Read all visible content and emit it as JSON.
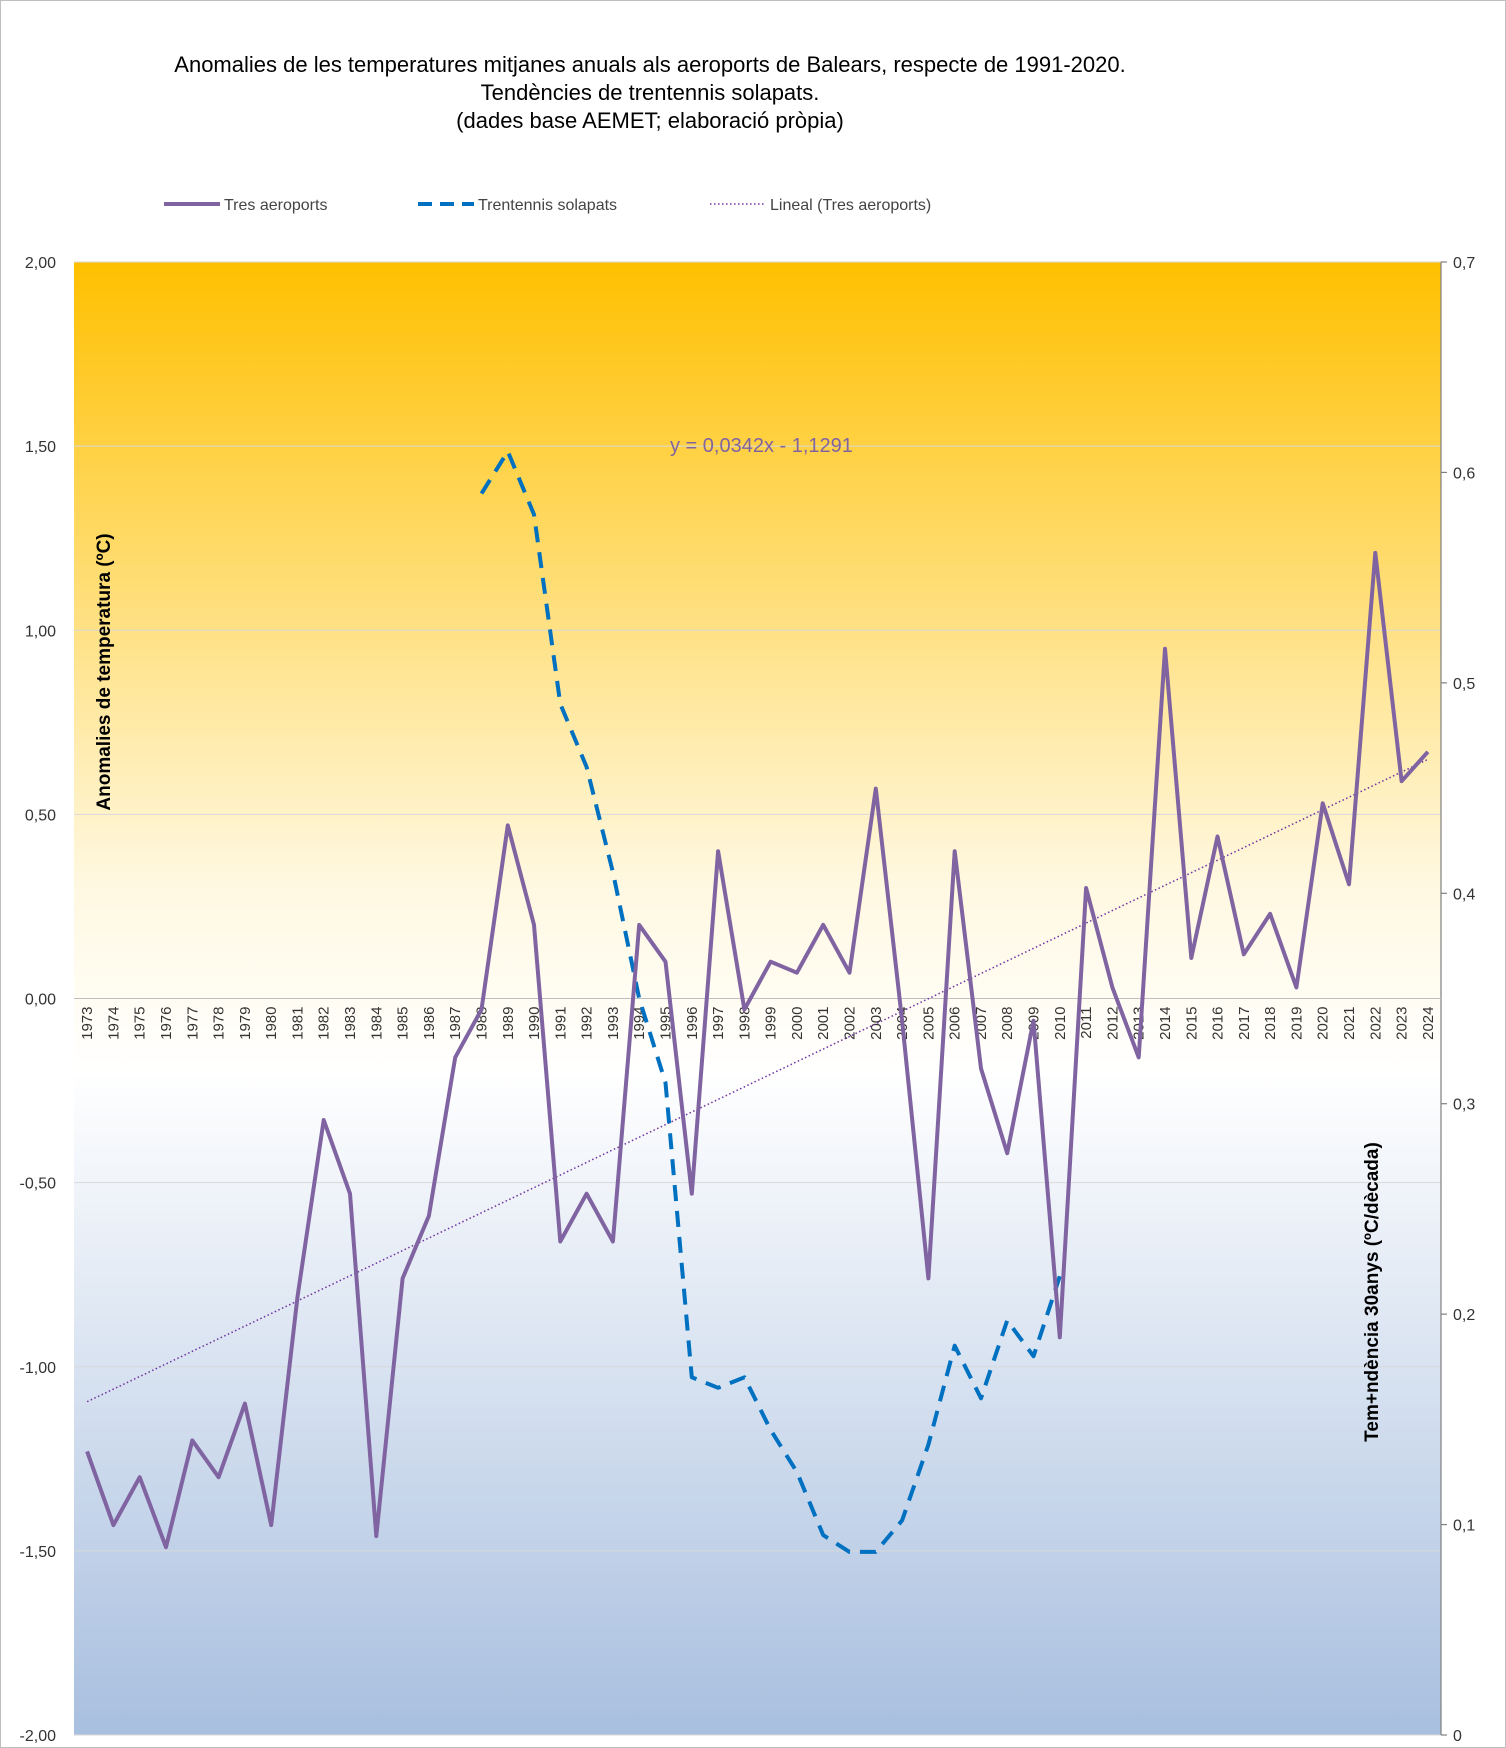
{
  "chart_data": {
    "type": "line",
    "title_lines": [
      "Anomalies de les temperatures mitjanes anuals als aeroports de Balears, respecte de 1991-2020.",
      "Tendències de trentennis solapats.",
      "(dades base AEMET; elaboració pròpia)"
    ],
    "ylabel": "Anomalies de temperatura (ºC)",
    "y2label": "Tem+ndència 30anys (ºC/dècada)",
    "ylim": [
      -2,
      2
    ],
    "y2lim": [
      0,
      0.7
    ],
    "yticks": [
      "2,00",
      "1,50",
      "1,00",
      "0,50",
      "0,00",
      "-0,50",
      "-1,00",
      "-1,50",
      "-2,00"
    ],
    "y2ticks": [
      "0,7",
      "0,6",
      "0,5",
      "0,4",
      "0,3",
      "0,2",
      "0,1",
      "0"
    ],
    "categories": [
      "1973",
      "1974",
      "1975",
      "1976",
      "1977",
      "1978",
      "1979",
      "1980",
      "1981",
      "1982",
      "1983",
      "1984",
      "1985",
      "1986",
      "1987",
      "1988",
      "1989",
      "1990",
      "1991",
      "1992",
      "1993",
      "1994",
      "1995",
      "1996",
      "1997",
      "1998",
      "1999",
      "2000",
      "2001",
      "2002",
      "2003",
      "2004",
      "2005",
      "2006",
      "2007",
      "2008",
      "2009",
      "2010",
      "2011",
      "2012",
      "2013",
      "2014",
      "2015",
      "2016",
      "2017",
      "2018",
      "2019",
      "2020",
      "2021",
      "2022",
      "2023",
      "2024"
    ],
    "legend_position": "top",
    "background": "vertical gradient: orange at top, white at zero, light blue at bottom",
    "colors": {
      "main": "#8064a2",
      "trend30": "#0070c0",
      "linear": "#7030a0",
      "bg_top": "#ffc000",
      "bg_mid": "#ffffff",
      "bg_bottom": "#a8bfdf"
    },
    "series": [
      {
        "name": "Tres aeroports",
        "axis": "left",
        "style": "solid",
        "values": [
          -1.23,
          -1.43,
          -1.3,
          -1.49,
          -1.2,
          -1.3,
          -1.1,
          -1.43,
          -0.81,
          -0.33,
          -0.53,
          -1.46,
          -0.76,
          -0.59,
          -0.16,
          -0.03,
          0.47,
          0.2,
          -0.66,
          -0.53,
          -0.66,
          0.2,
          0.1,
          -0.53,
          0.4,
          -0.03,
          0.1,
          0.07,
          0.2,
          0.07,
          0.57,
          -0.06,
          -0.76,
          0.4,
          -0.19,
          -0.42,
          -0.06,
          -0.92,
          0.3,
          0.03,
          -0.16,
          0.95,
          0.11,
          0.44,
          0.12,
          0.23,
          0.03,
          0.53,
          0.31,
          1.21,
          0.59,
          0.67
        ]
      },
      {
        "name": "Trentennis solapats",
        "axis": "right",
        "style": "dashed",
        "x": [
          "1988",
          "1989",
          "1990",
          "1991",
          "1992",
          "1993",
          "1994",
          "1995",
          "1996",
          "1997",
          "1998",
          "1999",
          "2000",
          "2001",
          "2002",
          "2003",
          "2004",
          "2005",
          "2006",
          "2007",
          "2008",
          "2009",
          "2010"
        ],
        "values": [
          0.59,
          0.61,
          0.58,
          0.49,
          0.46,
          0.41,
          0.35,
          0.31,
          0.17,
          0.165,
          0.17,
          0.145,
          0.125,
          0.095,
          0.087,
          0.087,
          0.102,
          0.138,
          0.185,
          0.16,
          0.197,
          0.18,
          0.218
        ]
      },
      {
        "name": "Lineal  (Tres aeroports)",
        "axis": "left",
        "style": "dotted",
        "slope": 0.0342,
        "intercept": -1.1291,
        "equation": "y = 0,0342x - 1,1291"
      }
    ]
  }
}
